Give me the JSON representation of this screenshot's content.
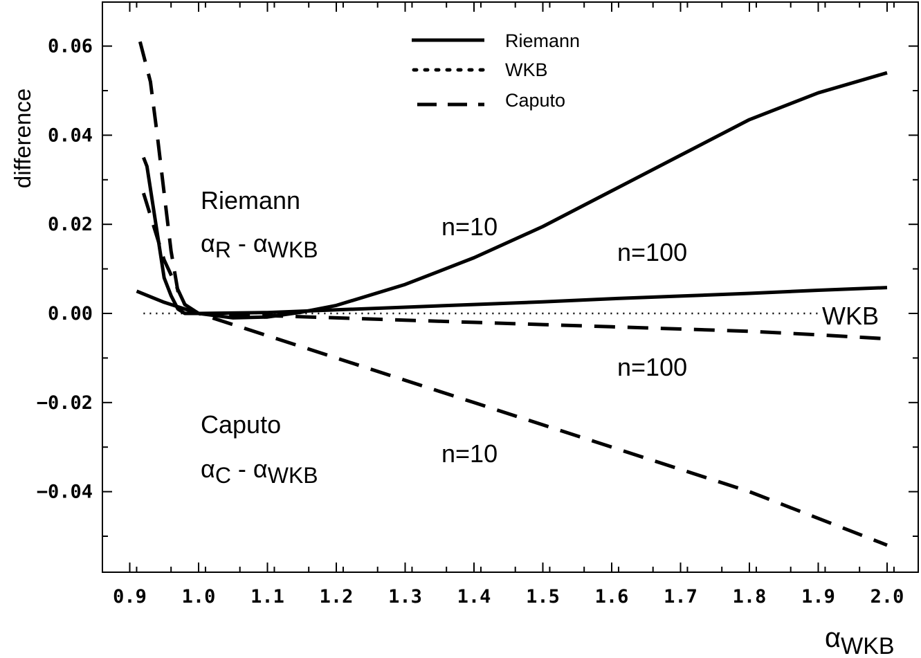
{
  "chart_data": {
    "type": "line",
    "title": "",
    "xlabel": {
      "symbol": "α",
      "sub": "WKB"
    },
    "ylabel": "difference",
    "xlim": [
      0.86,
      2.05
    ],
    "ylim": [
      -0.058,
      0.07
    ],
    "x_ticks": [
      0.9,
      1.0,
      1.1,
      1.2,
      1.3,
      1.4,
      1.5,
      1.6,
      1.7,
      1.8,
      1.9,
      2.0
    ],
    "x_tick_labels": [
      "0.9",
      "1.0",
      "1.1",
      "1.2",
      "1.3",
      "1.4",
      "1.5",
      "1.6",
      "1.7",
      "1.8",
      "1.9",
      "2.0"
    ],
    "y_ticks": [
      0.06,
      0.04,
      0.02,
      0.0,
      -0.02,
      -0.04
    ],
    "y_tick_labels": [
      "0.06",
      "0.04",
      "0.02",
      "0.00",
      "−0.02",
      "−0.04"
    ],
    "grid": false,
    "legend_position": "top-center",
    "legend": [
      {
        "label": "Riemann",
        "style": "solid"
      },
      {
        "label": "WKB",
        "style": "dotted"
      },
      {
        "label": "Caputo",
        "style": "dashed"
      }
    ],
    "series": [
      {
        "style": "solid",
        "x": [
          0.92,
          0.925,
          0.94,
          0.95,
          0.96,
          0.97,
          0.98,
          1.0,
          1.05,
          1.1,
          1.15,
          1.2,
          1.3,
          1.4,
          1.5,
          1.6,
          1.7,
          1.8,
          1.9,
          2.0
        ],
        "values": [
          0.035,
          0.033,
          0.018,
          0.008,
          0.004,
          0.001,
          0.0,
          0.0,
          -0.001,
          -0.0008,
          0.0003,
          0.0018,
          0.0065,
          0.0125,
          0.0195,
          0.0275,
          0.0355,
          0.0435,
          0.0495,
          0.054
        ]
      },
      {
        "style": "solid",
        "x": [
          0.91,
          0.95,
          1.0,
          1.1,
          1.2,
          1.3,
          1.4,
          1.5,
          1.6,
          1.7,
          1.8,
          1.9,
          2.0
        ],
        "values": [
          0.005,
          0.0025,
          0.0,
          0.0002,
          0.0008,
          0.0014,
          0.002,
          0.0026,
          0.0033,
          0.0039,
          0.0045,
          0.0052,
          0.0058
        ]
      },
      {
        "style": "dotted",
        "x": [
          0.92,
          1.9
        ],
        "values": [
          0.0,
          0.0
        ]
      },
      {
        "style": "dashed",
        "x": [
          0.915,
          0.93,
          0.94,
          0.95,
          0.96,
          0.97,
          0.98,
          1.0,
          1.1,
          1.2,
          1.3,
          1.4,
          1.5,
          1.6,
          1.7,
          1.8,
          1.9,
          2.0
        ],
        "values": [
          0.061,
          0.052,
          0.04,
          0.027,
          0.014,
          0.005,
          0.002,
          0.0,
          -0.005,
          -0.01,
          -0.015,
          -0.02,
          -0.025,
          -0.03,
          -0.035,
          -0.04,
          -0.046,
          -0.052
        ]
      },
      {
        "style": "dashed",
        "x": [
          0.92,
          0.95,
          0.98,
          1.0,
          1.1,
          1.2,
          1.3,
          1.4,
          1.5,
          1.6,
          1.7,
          1.8,
          1.9,
          2.0
        ],
        "values": [
          0.027,
          0.012,
          0.002,
          0.0,
          -0.0005,
          -0.001,
          -0.0015,
          -0.002,
          -0.0025,
          -0.003,
          -0.0035,
          -0.004,
          -0.0048,
          -0.0057
        ]
      }
    ],
    "annotations": [
      {
        "text": "Riemann"
      },
      {
        "symbol": "α",
        "sub": "R",
        "rest": " - α",
        "sub2": "WKB"
      },
      {
        "text": "Caputo"
      },
      {
        "symbol": "α",
        "sub": "C",
        "rest": " - α",
        "sub2": "WKB"
      },
      {
        "text": "n=10"
      },
      {
        "text": "n=100"
      },
      {
        "text": "WKB"
      },
      {
        "text": "n=100"
      },
      {
        "text": "n=10"
      }
    ]
  }
}
